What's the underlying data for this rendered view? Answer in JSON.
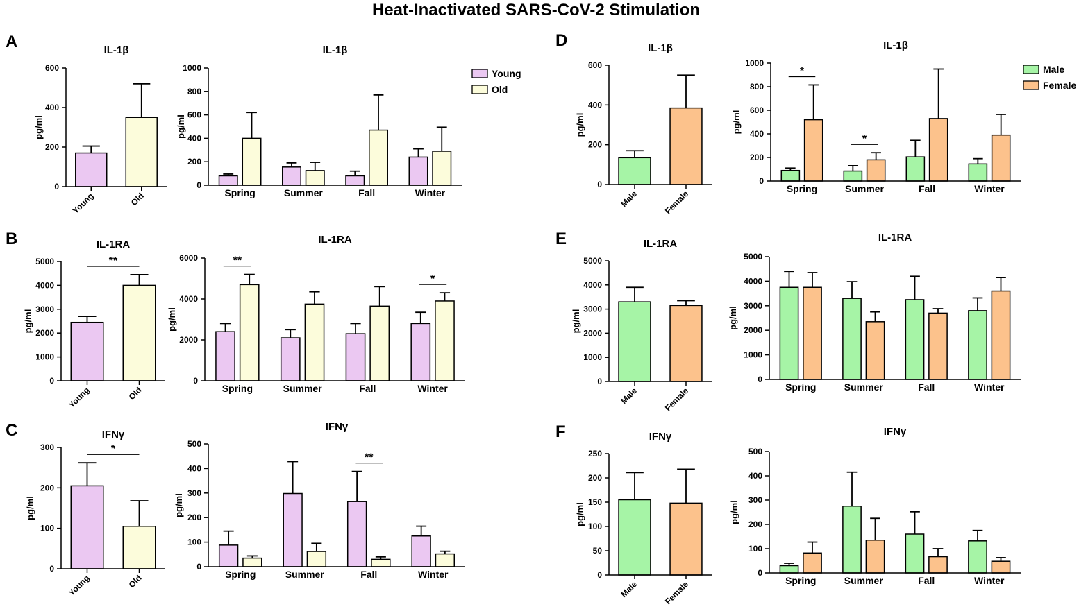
{
  "figure_title": "Heat-Inactivated SARS-CoV-2 Stimulation",
  "colors": {
    "Young": "#EBC8F2",
    "Old": "#FCFCDB",
    "Male": "#A6F4A6",
    "Female": "#FCC28C"
  },
  "legends": [
    {
      "panel": "A",
      "entries": [
        "Young",
        "Old"
      ]
    },
    {
      "panel": "D",
      "entries": [
        "Male",
        "Female"
      ]
    }
  ],
  "chart_data": [
    {
      "id": "A1",
      "panel_label": "A",
      "type": "bar",
      "title": "IL-1β",
      "ylabel": "pg/ml",
      "ylim": [
        0,
        600
      ],
      "yticks": [
        0,
        200,
        400,
        600
      ],
      "categories": [
        "Young",
        "Old"
      ],
      "rotate": true,
      "series": [
        {
          "name": "single",
          "colors": [
            "Young",
            "Old"
          ],
          "values": [
            170,
            350
          ],
          "errors": [
            205,
            520
          ]
        }
      ],
      "sig": []
    },
    {
      "id": "A2",
      "type": "bar",
      "title": "IL-1β",
      "ylabel": "pg/ml",
      "ylim": [
        0,
        1000
      ],
      "yticks": [
        0,
        200,
        400,
        600,
        800,
        1000
      ],
      "categories": [
        "Spring",
        "Summer",
        "Fall",
        "Winter"
      ],
      "series": [
        {
          "name": "Young",
          "values": [
            80,
            155,
            80,
            240
          ],
          "errors": [
            95,
            190,
            120,
            310
          ]
        },
        {
          "name": "Old",
          "values": [
            400,
            125,
            470,
            290
          ],
          "errors": [
            620,
            195,
            770,
            495
          ]
        }
      ],
      "sig": []
    },
    {
      "id": "B1",
      "panel_label": "B",
      "type": "bar",
      "title": "IL-1RA",
      "ylabel": "pg/ml",
      "ylim": [
        0,
        5000
      ],
      "yticks": [
        0,
        1000,
        2000,
        3000,
        4000,
        5000
      ],
      "categories": [
        "Young",
        "Old"
      ],
      "rotate": true,
      "series": [
        {
          "name": "single",
          "colors": [
            "Young",
            "Old"
          ],
          "values": [
            2450,
            4000
          ],
          "errors": [
            2700,
            4450
          ]
        }
      ],
      "sig": [
        {
          "text": "**",
          "cat": -1
        }
      ]
    },
    {
      "id": "B2",
      "type": "bar",
      "title": "IL-1RA",
      "ylabel": "pg/ml",
      "ylim": [
        0,
        6000
      ],
      "yticks": [
        0,
        2000,
        4000,
        6000
      ],
      "categories": [
        "Spring",
        "Summer",
        "Fall",
        "Winter"
      ],
      "series": [
        {
          "name": "Young",
          "values": [
            2400,
            2100,
            2300,
            2800
          ],
          "errors": [
            2800,
            2500,
            2800,
            3350
          ]
        },
        {
          "name": "Old",
          "values": [
            4700,
            3750,
            3650,
            3900
          ],
          "errors": [
            5200,
            4350,
            4600,
            4300
          ]
        }
      ],
      "sig": [
        {
          "text": "**",
          "cat": 0
        },
        {
          "text": "*",
          "cat": 3
        }
      ]
    },
    {
      "id": "C1",
      "panel_label": "C",
      "type": "bar",
      "title": "IFNγ",
      "ylabel": "pg/ml",
      "ylim": [
        0,
        300
      ],
      "yticks": [
        0,
        100,
        200,
        300
      ],
      "categories": [
        "Young",
        "Old"
      ],
      "rotate": true,
      "series": [
        {
          "name": "single",
          "colors": [
            "Young",
            "Old"
          ],
          "values": [
            205,
            105
          ],
          "errors": [
            262,
            168
          ]
        }
      ],
      "sig": [
        {
          "text": "*",
          "cat": -1
        }
      ]
    },
    {
      "id": "C2",
      "type": "bar",
      "title": "IFNγ",
      "ylabel": "pg/ml",
      "ylim": [
        0,
        500
      ],
      "yticks": [
        0,
        100,
        200,
        300,
        400,
        500
      ],
      "categories": [
        "Spring",
        "Summer",
        "Fall",
        "Winter"
      ],
      "series": [
        {
          "name": "Young",
          "values": [
            88,
            298,
            265,
            125
          ],
          "errors": [
            145,
            428,
            388,
            165
          ]
        },
        {
          "name": "Old",
          "values": [
            35,
            62,
            30,
            52
          ],
          "errors": [
            44,
            95,
            40,
            63
          ]
        }
      ],
      "sig": [
        {
          "text": "**",
          "cat": 2
        }
      ]
    },
    {
      "id": "D1",
      "panel_label": "D",
      "type": "bar",
      "title": "IL-1β",
      "ylabel": "pg/ml",
      "ylim": [
        0,
        600
      ],
      "yticks": [
        0,
        200,
        400,
        600
      ],
      "categories": [
        "Male",
        "Female"
      ],
      "rotate": true,
      "series": [
        {
          "name": "single",
          "colors": [
            "Male",
            "Female"
          ],
          "values": [
            135,
            385
          ],
          "errors": [
            170,
            550
          ]
        }
      ],
      "sig": []
    },
    {
      "id": "D2",
      "type": "bar",
      "title": "IL-1β",
      "ylabel": "pg/ml",
      "ylim": [
        0,
        1000
      ],
      "yticks": [
        0,
        200,
        400,
        600,
        800,
        1000
      ],
      "categories": [
        "Spring",
        "Summer",
        "Fall",
        "Winter"
      ],
      "series": [
        {
          "name": "Male",
          "values": [
            90,
            85,
            205,
            145
          ],
          "errors": [
            110,
            130,
            345,
            190
          ]
        },
        {
          "name": "Female",
          "values": [
            520,
            180,
            530,
            390
          ],
          "errors": [
            815,
            240,
            950,
            565
          ]
        }
      ],
      "sig": [
        {
          "text": "*",
          "cat": 0
        },
        {
          "text": "*",
          "cat": 1
        }
      ]
    },
    {
      "id": "E1",
      "panel_label": "E",
      "type": "bar",
      "title": "IL-1RA",
      "ylabel": "pg/ml",
      "ylim": [
        0,
        5000
      ],
      "yticks": [
        0,
        1000,
        2000,
        3000,
        4000,
        5000
      ],
      "categories": [
        "Male",
        "Female"
      ],
      "rotate": true,
      "series": [
        {
          "name": "single",
          "colors": [
            "Male",
            "Female"
          ],
          "values": [
            3300,
            3150
          ],
          "errors": [
            3900,
            3350
          ]
        }
      ],
      "sig": []
    },
    {
      "id": "E2",
      "type": "bar",
      "title": "IL-1RA",
      "ylabel": "pg/ml",
      "ylim": [
        0,
        5000
      ],
      "yticks": [
        0,
        1000,
        2000,
        3000,
        4000,
        5000
      ],
      "categories": [
        "Spring",
        "Summer",
        "Fall",
        "Winter"
      ],
      "series": [
        {
          "name": "Male",
          "values": [
            3750,
            3300,
            3250,
            2800
          ],
          "errors": [
            4400,
            3980,
            4200,
            3320
          ]
        },
        {
          "name": "Female",
          "values": [
            3750,
            2350,
            2700,
            3600
          ],
          "errors": [
            4350,
            2750,
            2880,
            4150
          ]
        }
      ],
      "sig": []
    },
    {
      "id": "F1",
      "panel_label": "F",
      "type": "bar",
      "title": "IFNγ",
      "ylabel": "pg/ml",
      "ylim": [
        0,
        250
      ],
      "yticks": [
        0,
        50,
        100,
        150,
        200,
        250
      ],
      "categories": [
        "Male",
        "Female"
      ],
      "rotate": true,
      "series": [
        {
          "name": "single",
          "colors": [
            "Male",
            "Female"
          ],
          "values": [
            155,
            148
          ],
          "errors": [
            211,
            218
          ]
        }
      ],
      "sig": []
    },
    {
      "id": "F2",
      "type": "bar",
      "title": "IFNγ",
      "ylabel": "pg/ml",
      "ylim": [
        0,
        500
      ],
      "yticks": [
        0,
        100,
        200,
        300,
        400,
        500
      ],
      "categories": [
        "Spring",
        "Summer",
        "Fall",
        "Winter"
      ],
      "series": [
        {
          "name": "Male",
          "values": [
            30,
            275,
            160,
            132
          ],
          "errors": [
            40,
            415,
            252,
            175
          ]
        },
        {
          "name": "Female",
          "values": [
            82,
            135,
            67,
            48
          ],
          "errors": [
            127,
            225,
            100,
            63
          ]
        }
      ],
      "sig": []
    }
  ]
}
